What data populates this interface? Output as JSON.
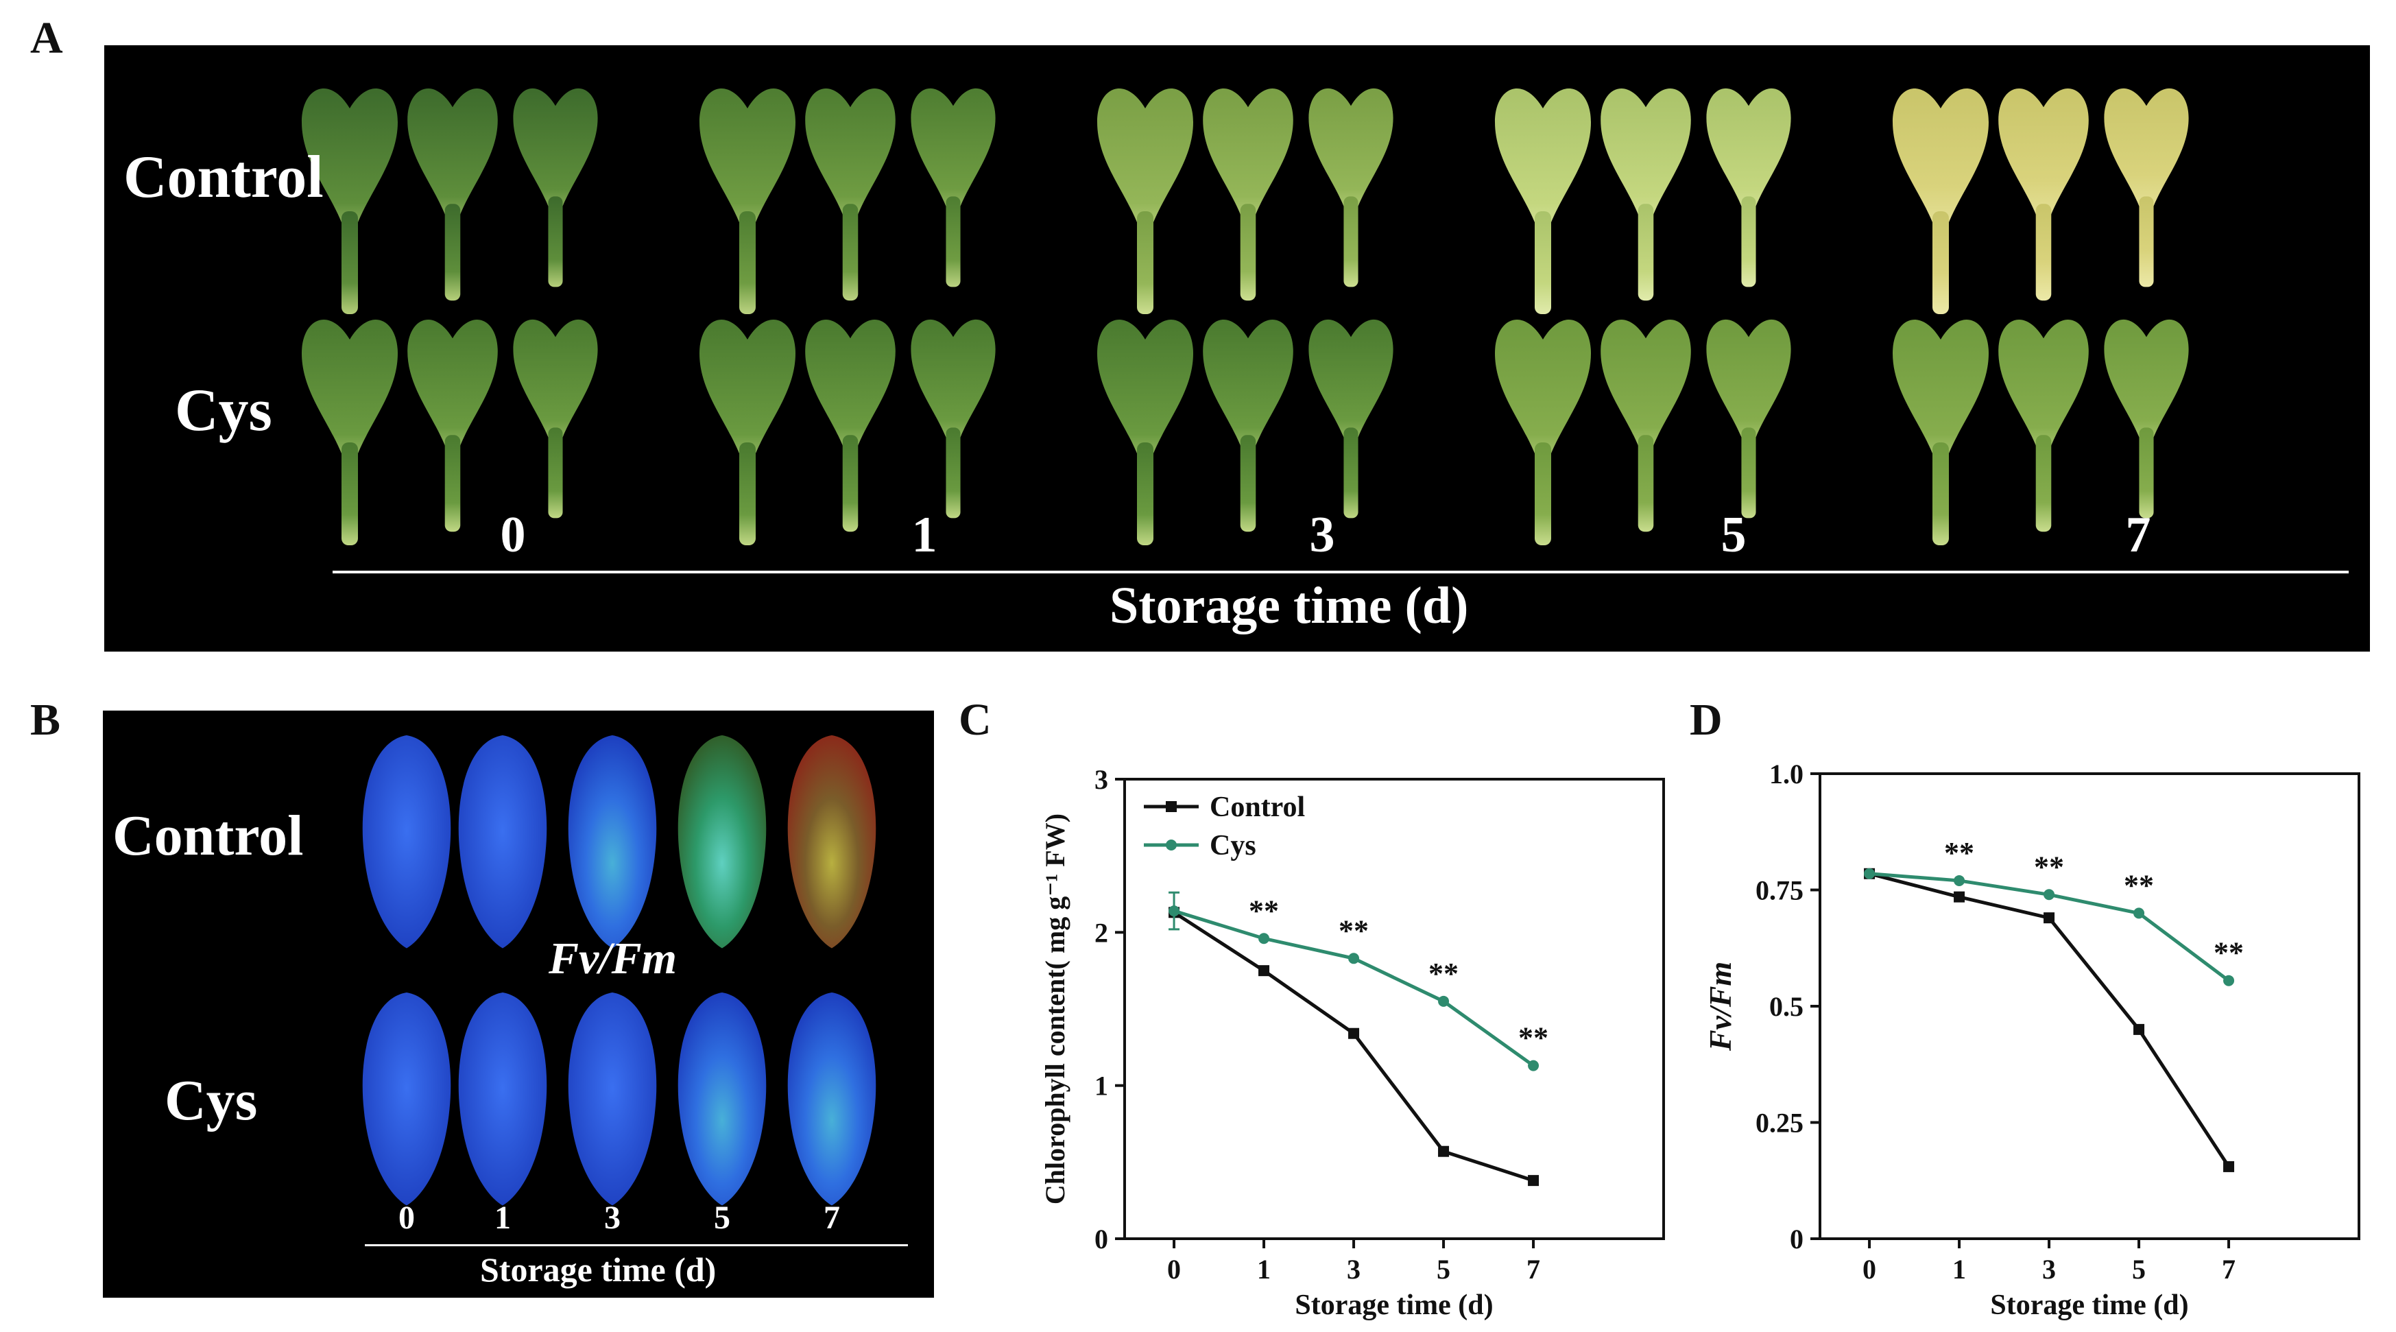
{
  "panels": {
    "a": "A",
    "b": "B",
    "c": "C",
    "d": "D"
  },
  "panel_a": {
    "row_labels": [
      "Control",
      "Cys"
    ],
    "days": [
      "0",
      "1",
      "3",
      "5",
      "7"
    ],
    "axis_title": "Storage time  (d)"
  },
  "panel_b": {
    "row_labels": [
      "Control",
      "Cys"
    ],
    "middle_label": "Fv/Fm",
    "days": [
      "0",
      "1",
      "3",
      "5",
      "7"
    ],
    "axis_title": "Storage time  (d)"
  },
  "colors": {
    "control": "#111111",
    "cys": "#2e8b6e"
  },
  "chart_data": [
    {
      "type": "line",
      "panel": "C",
      "x": [
        "0",
        "1",
        "3",
        "5",
        "7"
      ],
      "xlabel": "Storage time (d)",
      "ylabel": "Chlorophyll content( mg g⁻¹ FW)",
      "ylim": [
        0,
        3
      ],
      "yticks": [
        "0",
        "1",
        "2",
        "3"
      ],
      "legend": "top-left",
      "series": [
        {
          "name": "Control",
          "values": [
            2.13,
            1.75,
            1.34,
            0.57,
            0.38
          ]
        },
        {
          "name": "Cys",
          "values": [
            2.14,
            1.96,
            1.83,
            1.55,
            1.13
          ]
        }
      ],
      "significance": [
        "",
        "**",
        "**",
        "**",
        "**"
      ],
      "error_bar_day0": 0.12
    },
    {
      "type": "line",
      "panel": "D",
      "x": [
        "0",
        "1",
        "3",
        "5",
        "7"
      ],
      "xlabel": "Storage time (d)",
      "ylabel": "Fv/Fm",
      "ylim": [
        0,
        1.0
      ],
      "yticks": [
        "0",
        "0.25",
        "0.5",
        "0.75",
        "1.0"
      ],
      "series": [
        {
          "name": "Control",
          "values": [
            0.785,
            0.735,
            0.69,
            0.45,
            0.155
          ]
        },
        {
          "name": "Cys",
          "values": [
            0.785,
            0.77,
            0.74,
            0.7,
            0.555
          ]
        }
      ],
      "significance": [
        "",
        "**",
        "**",
        "**",
        "**"
      ]
    }
  ]
}
